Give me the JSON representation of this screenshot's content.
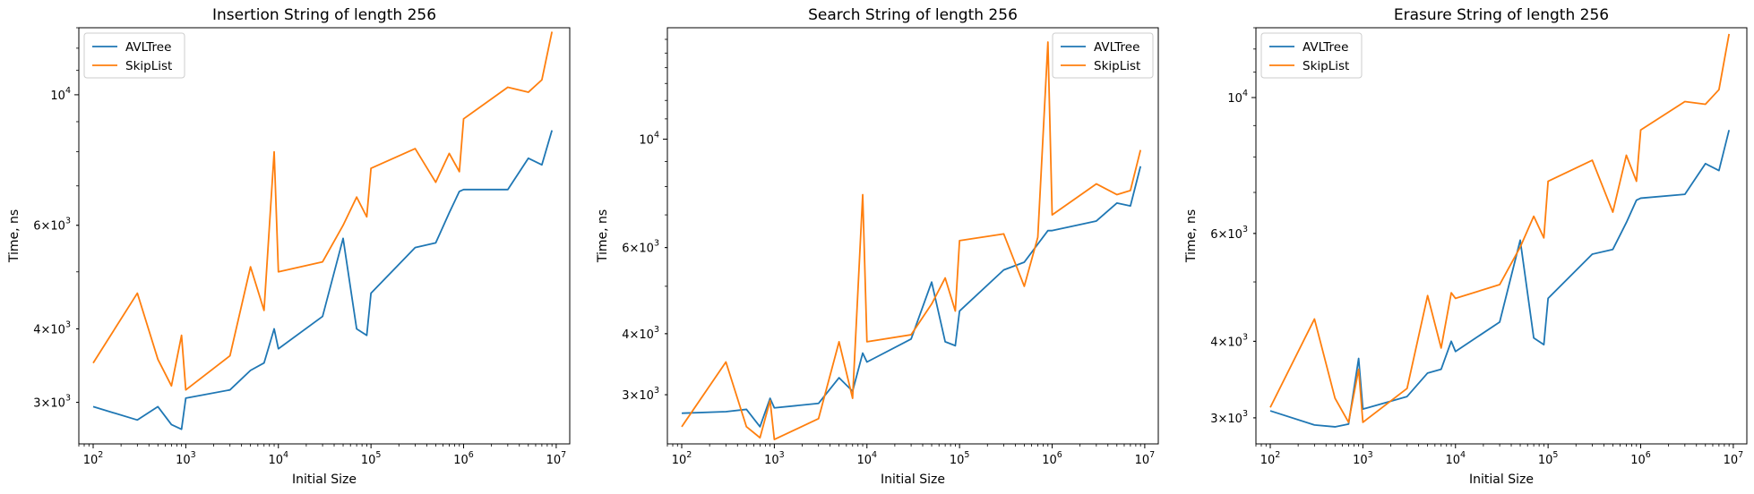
{
  "chart_data": [
    {
      "type": "line",
      "title": "Insertion String of length 256",
      "xlabel": "Initial Size",
      "ylabel": "Time, ns",
      "xscale": "log",
      "yscale": "log",
      "xlim": [
        70,
        14000000
      ],
      "ylim": [
        2550,
        13000
      ],
      "xticks": [
        {
          "value": 100,
          "base": "10",
          "exp": "2"
        },
        {
          "value": 1000,
          "base": "10",
          "exp": "3"
        },
        {
          "value": 10000,
          "base": "10",
          "exp": "4"
        },
        {
          "value": 100000,
          "base": "10",
          "exp": "5"
        },
        {
          "value": 1000000,
          "base": "10",
          "exp": "6"
        },
        {
          "value": 10000000,
          "base": "10",
          "exp": "7"
        }
      ],
      "yticks": [
        {
          "value": 3000,
          "mant": "3",
          "base": "10",
          "exp": "3"
        },
        {
          "value": 4000,
          "mant": "4",
          "base": "10",
          "exp": "3"
        },
        {
          "value": 6000,
          "mant": "6",
          "base": "10",
          "exp": "3"
        },
        {
          "value": 10000,
          "mant": "",
          "base": "10",
          "exp": "4"
        }
      ],
      "legend": "top-left",
      "grid": false,
      "series": [
        {
          "name": "AVLTree",
          "color": "#1f77b4",
          "x": [
            100,
            300,
            500,
            700,
            900,
            1000,
            3000,
            5000,
            7000,
            9000,
            10000,
            30000,
            50000,
            70000,
            90000,
            100000,
            300000,
            500000,
            700000,
            900000,
            1000000,
            3000000,
            5000000,
            7000000,
            9000000
          ],
          "y": [
            2950,
            2800,
            2950,
            2750,
            2700,
            3050,
            3150,
            3400,
            3500,
            4000,
            3700,
            4200,
            5700,
            4000,
            3900,
            4600,
            5500,
            5600,
            6300,
            6850,
            6900,
            6900,
            7800,
            7600,
            8700
          ]
        },
        {
          "name": "SkipList",
          "color": "#ff7f0e",
          "x": [
            100,
            300,
            500,
            700,
            900,
            1000,
            3000,
            5000,
            7000,
            9000,
            10000,
            30000,
            50000,
            70000,
            90000,
            100000,
            300000,
            500000,
            700000,
            900000,
            1000000,
            3000000,
            5000000,
            7000000,
            9000000
          ],
          "y": [
            3500,
            4600,
            3550,
            3200,
            3900,
            3150,
            3600,
            5100,
            4300,
            8000,
            5000,
            5200,
            6000,
            6700,
            6200,
            7500,
            8100,
            7100,
            7950,
            7400,
            9100,
            10300,
            10100,
            10600,
            12800
          ]
        }
      ]
    },
    {
      "type": "line",
      "title": "Search String of length 256",
      "xlabel": "Initial Size",
      "ylabel": "Time, ns",
      "xscale": "log",
      "yscale": "log",
      "xlim": [
        70,
        14000000
      ],
      "ylim": [
        2380,
        16900
      ],
      "xticks": [
        {
          "value": 100,
          "base": "10",
          "exp": "2"
        },
        {
          "value": 1000,
          "base": "10",
          "exp": "3"
        },
        {
          "value": 10000,
          "base": "10",
          "exp": "4"
        },
        {
          "value": 100000,
          "base": "10",
          "exp": "5"
        },
        {
          "value": 1000000,
          "base": "10",
          "exp": "6"
        },
        {
          "value": 10000000,
          "base": "10",
          "exp": "7"
        }
      ],
      "yticks": [
        {
          "value": 3000,
          "mant": "3",
          "base": "10",
          "exp": "3"
        },
        {
          "value": 4000,
          "mant": "4",
          "base": "10",
          "exp": "3"
        },
        {
          "value": 6000,
          "mant": "6",
          "base": "10",
          "exp": "3"
        },
        {
          "value": 10000,
          "mant": "",
          "base": "10",
          "exp": "4"
        }
      ],
      "legend": "top-right",
      "grid": false,
      "series": [
        {
          "name": "AVLTree",
          "color": "#1f77b4",
          "x": [
            100,
            300,
            500,
            700,
            900,
            1000,
            3000,
            5000,
            7000,
            9000,
            10000,
            30000,
            50000,
            70000,
            90000,
            100000,
            300000,
            500000,
            700000,
            900000,
            1000000,
            3000000,
            5000000,
            7000000,
            9000000
          ],
          "y": [
            2750,
            2770,
            2800,
            2580,
            2950,
            2820,
            2880,
            3250,
            3050,
            3650,
            3500,
            3900,
            5100,
            3850,
            3780,
            4450,
            5400,
            5600,
            6100,
            6500,
            6500,
            6800,
            7400,
            7300,
            8800
          ]
        },
        {
          "name": "SkipList",
          "color": "#ff7f0e",
          "x": [
            100,
            300,
            500,
            700,
            900,
            1000,
            3000,
            5000,
            7000,
            9000,
            10000,
            30000,
            50000,
            70000,
            90000,
            100000,
            300000,
            500000,
            700000,
            900000,
            1000000,
            3000000,
            5000000,
            7000000,
            9000000
          ],
          "y": [
            2580,
            3500,
            2580,
            2450,
            2920,
            2430,
            2680,
            3850,
            2950,
            7700,
            3850,
            3980,
            4600,
            5200,
            4450,
            6200,
            6400,
            5000,
            6300,
            15800,
            7000,
            8100,
            7700,
            7850,
            9500
          ]
        }
      ]
    },
    {
      "type": "line",
      "title": "Erasure String of length 256",
      "xlabel": "Initial Size",
      "ylabel": "Time, ns",
      "xscale": "log",
      "yscale": "log",
      "xlim": [
        70,
        14000000
      ],
      "ylim": [
        2720,
        13000
      ],
      "xticks": [
        {
          "value": 100,
          "base": "10",
          "exp": "2"
        },
        {
          "value": 1000,
          "base": "10",
          "exp": "3"
        },
        {
          "value": 10000,
          "base": "10",
          "exp": "4"
        },
        {
          "value": 100000,
          "base": "10",
          "exp": "5"
        },
        {
          "value": 1000000,
          "base": "10",
          "exp": "6"
        },
        {
          "value": 10000000,
          "base": "10",
          "exp": "7"
        }
      ],
      "yticks": [
        {
          "value": 3000,
          "mant": "3",
          "base": "10",
          "exp": "3"
        },
        {
          "value": 4000,
          "mant": "4",
          "base": "10",
          "exp": "3"
        },
        {
          "value": 6000,
          "mant": "6",
          "base": "10",
          "exp": "3"
        },
        {
          "value": 10000,
          "mant": "",
          "base": "10",
          "exp": "4"
        }
      ],
      "legend": "top-left",
      "grid": false,
      "series": [
        {
          "name": "AVLTree",
          "color": "#1f77b4",
          "x": [
            100,
            300,
            500,
            700,
            900,
            1000,
            3000,
            5000,
            7000,
            9000,
            10000,
            30000,
            50000,
            70000,
            90000,
            100000,
            300000,
            500000,
            700000,
            900000,
            1000000,
            3000000,
            5000000,
            7000000,
            9000000
          ],
          "y": [
            3080,
            2920,
            2900,
            2930,
            3750,
            3100,
            3250,
            3550,
            3600,
            4000,
            3850,
            4300,
            5850,
            4050,
            3950,
            4700,
            5550,
            5650,
            6250,
            6800,
            6850,
            6950,
            7800,
            7600,
            8850
          ]
        },
        {
          "name": "SkipList",
          "color": "#ff7f0e",
          "x": [
            100,
            300,
            500,
            700,
            900,
            1000,
            3000,
            5000,
            7000,
            9000,
            10000,
            30000,
            50000,
            70000,
            90000,
            100000,
            300000,
            500000,
            700000,
            900000,
            1000000,
            3000000,
            5000000,
            7000000,
            9000000
          ],
          "y": [
            3120,
            4350,
            3230,
            2950,
            3600,
            2950,
            3350,
            4750,
            3900,
            4800,
            4700,
            4950,
            5700,
            6400,
            5900,
            7300,
            7900,
            6500,
            8050,
            7300,
            8850,
            9850,
            9750,
            10300,
            12700
          ]
        }
      ]
    }
  ]
}
